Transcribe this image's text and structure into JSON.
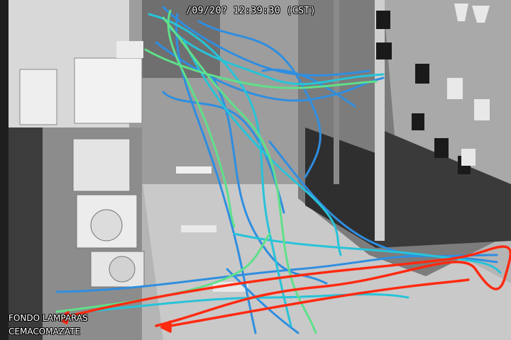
{
  "camera": {
    "timestamp": "/09/20? 12:39:30 (CST)",
    "location_line1": "FONDO LAMPARAS",
    "location_line2": "CEMACOMAZATE"
  },
  "trails": {
    "colors": {
      "blue": "#2f8ee0",
      "cyan": "#27c3d8",
      "green": "#5fe08a",
      "red": "#ff2a10"
    }
  }
}
